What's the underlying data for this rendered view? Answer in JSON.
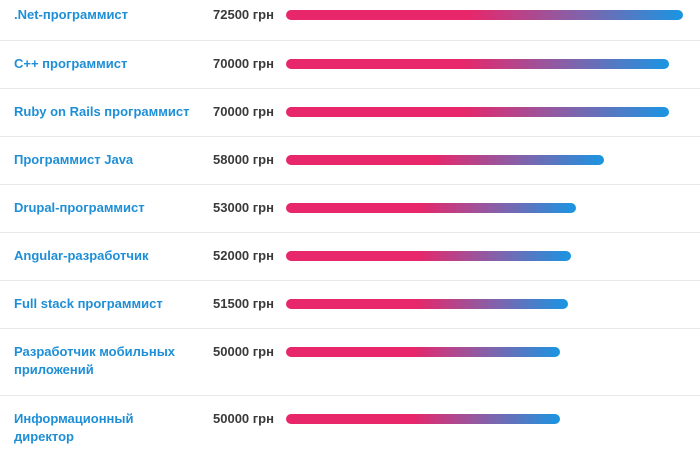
{
  "chart_data": {
    "type": "bar",
    "orientation": "horizontal",
    "title": "",
    "xlabel": "",
    "ylabel": "",
    "unit": "грн",
    "xlim": [
      0,
      72500
    ],
    "categories": [
      ".Net-программист",
      "C++ программист",
      "Ruby on Rails программист",
      "Программист Java",
      "Drupal-программист",
      "Angular-разработчик",
      "Full stack программист",
      "Разработчик мобильных приложений",
      "Информационный директор"
    ],
    "values": [
      72500,
      70000,
      70000,
      58000,
      53000,
      52000,
      51500,
      50000,
      50000
    ],
    "value_labels": [
      "72500 грн",
      "70000 грн",
      "70000 грн",
      "58000 грн",
      "53000 грн",
      "52000 грн",
      "51500 грн",
      "50000 грн",
      "50000 грн"
    ]
  },
  "colors": {
    "link": "#1e8fd6",
    "value_text": "#3a3a3a",
    "bar_start": "#e8266a",
    "bar_mid": "#8a5ea6",
    "bar_end": "#1a95e2",
    "divider": "#e6e9ec"
  }
}
